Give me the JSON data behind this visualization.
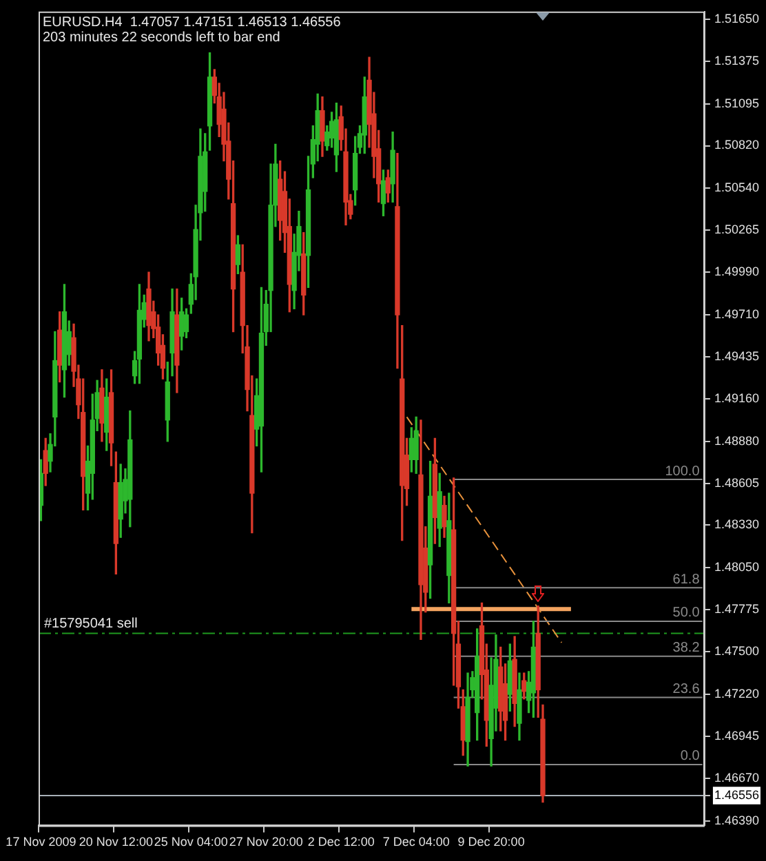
{
  "chart_data": {
    "type": "candlestick",
    "title": "EURUSD.H4  1.47057 1.47151 1.46513 1.46556",
    "subtitle": "203 minutes 22 seconds left to bar end",
    "categories": [
      "17 Nov 2009",
      null,
      null,
      null,
      null,
      null,
      null,
      null,
      null,
      null,
      null,
      null,
      null,
      null,
      null,
      null,
      "20 Nov 12:00",
      null,
      null,
      null,
      null,
      null,
      null,
      null,
      null,
      null,
      null,
      null,
      null,
      null,
      null,
      null,
      "25 Nov 04:00",
      null,
      null,
      null,
      null,
      null,
      null,
      null,
      null,
      null,
      null,
      null,
      null,
      null,
      null,
      null,
      "27 Nov 20:00",
      null,
      null,
      null,
      null,
      null,
      null,
      null,
      null,
      null,
      null,
      null,
      null,
      null,
      null,
      null,
      "2 Dec 12:00",
      null,
      null,
      null,
      null,
      null,
      null,
      null,
      null,
      null,
      null,
      null,
      null,
      null,
      null,
      null,
      "7 Dec 04:00",
      null,
      null,
      null,
      null,
      null,
      null,
      null,
      null,
      null,
      null,
      null,
      null,
      null,
      null,
      null,
      "9 Dec 20:00",
      null,
      null,
      null,
      null,
      null,
      null,
      null,
      null,
      null,
      null,
      null,
      null,
      null,
      null,
      null,
      null,
      null,
      null,
      null,
      null,
      null,
      null,
      null,
      null,
      null,
      null,
      null,
      null,
      null,
      null,
      null,
      null,
      null,
      null,
      null,
      null,
      null,
      null,
      null,
      null,
      null,
      null,
      null,
      null,
      null
    ],
    "ohlc": [
      [
        1.4846,
        1.4876,
        1.4836,
        1.4867
      ],
      [
        1.4882,
        1.489,
        1.4859,
        1.4867
      ],
      [
        1.4875,
        1.4893,
        1.4868,
        1.4886
      ],
      [
        1.4904,
        1.496,
        1.4885,
        1.4941
      ],
      [
        1.4961,
        1.4973,
        1.4927,
        1.4938
      ],
      [
        1.4935,
        1.4991,
        1.4917,
        1.4973
      ],
      [
        1.4945,
        1.4967,
        1.4938,
        1.496
      ],
      [
        1.4956,
        1.4965,
        1.4924,
        1.4934
      ],
      [
        1.4929,
        1.4938,
        1.4903,
        1.4912
      ],
      [
        1.4907,
        1.4929,
        1.4843,
        1.4865
      ],
      [
        1.4854,
        1.4885,
        1.4843,
        1.4875
      ],
      [
        1.4867,
        1.4919,
        1.485,
        1.4902
      ],
      [
        1.4903,
        1.4928,
        1.4895,
        1.492
      ],
      [
        1.4923,
        1.4935,
        1.4888,
        1.49
      ],
      [
        1.4894,
        1.4929,
        1.4882,
        1.4917
      ],
      [
        1.492,
        1.4935,
        1.4872,
        1.4887
      ],
      [
        1.4861,
        1.4881,
        1.4801,
        1.4821
      ],
      [
        1.4837,
        1.4873,
        1.4825,
        1.4861
      ],
      [
        1.4849,
        1.487,
        1.4841,
        1.4863
      ],
      [
        1.485,
        1.4908,
        1.4832,
        1.4889
      ],
      [
        1.4931,
        1.4947,
        1.4926,
        1.4941
      ],
      [
        1.4942,
        1.4991,
        1.4926,
        1.4974
      ],
      [
        1.4968,
        1.4984,
        1.4963,
        1.4979
      ],
      [
        1.4988,
        1.4999,
        1.4954,
        1.4964
      ],
      [
        1.4973,
        1.498,
        1.4956,
        1.4962
      ],
      [
        1.4963,
        1.4971,
        1.4938,
        1.4946
      ],
      [
        1.4951,
        1.4958,
        1.4929,
        1.4936
      ],
      [
        1.4902,
        1.494,
        1.4888,
        1.4927
      ],
      [
        1.4946,
        1.4988,
        1.4931,
        1.4973
      ],
      [
        1.4971,
        1.4988,
        1.492,
        1.4938
      ],
      [
        1.4957,
        1.4982,
        1.4948,
        1.4973
      ],
      [
        1.496,
        1.4975,
        1.4956,
        1.4971
      ],
      [
        1.4978,
        1.4998,
        1.4972,
        1.4991
      ],
      [
        1.4996,
        1.5043,
        1.4981,
        1.5027
      ],
      [
        1.5038,
        1.5093,
        1.502,
        1.5075
      ],
      [
        1.5052,
        1.509,
        1.5039,
        1.5078
      ],
      [
        1.5095,
        1.5143,
        1.5079,
        1.5127
      ],
      [
        1.5127,
        1.5132,
        1.511,
        1.5115
      ],
      [
        1.5114,
        1.5123,
        1.5088,
        1.5096
      ],
      [
        1.5106,
        1.5117,
        1.5072,
        1.5083
      ],
      [
        1.5085,
        1.5097,
        1.5047,
        1.506
      ],
      [
        1.5044,
        1.5072,
        1.496,
        1.4988
      ],
      [
        1.5004,
        1.5023,
        1.4998,
        1.5017
      ],
      [
        1.4999,
        1.5017,
        1.4946,
        1.4964
      ],
      [
        1.495,
        1.4964,
        1.4908,
        1.4922
      ],
      [
        1.4905,
        1.4931,
        1.4828,
        1.4854
      ],
      [
        1.4896,
        1.4929,
        1.4885,
        1.4918
      ],
      [
        1.4898,
        1.4989,
        1.4868,
        1.4959
      ],
      [
        1.496,
        1.4987,
        1.4951,
        1.4978
      ],
      [
        1.4987,
        1.507,
        1.496,
        1.5043
      ],
      [
        1.5043,
        1.5083,
        1.5029,
        1.507
      ],
      [
        1.506,
        1.5072,
        1.502,
        1.5033
      ],
      [
        1.5052,
        1.5065,
        1.5012,
        1.5025
      ],
      [
        1.5029,
        1.5047,
        1.4973,
        1.4991
      ],
      [
        1.4987,
        1.5024,
        1.4975,
        1.5012
      ],
      [
        1.501,
        1.5039,
        1.5,
        1.5029
      ],
      [
        1.5011,
        1.5025,
        1.4971,
        1.4984
      ],
      [
        1.501,
        1.5075,
        1.4989,
        1.5053
      ],
      [
        1.507,
        1.5095,
        1.5061,
        1.5086
      ],
      [
        1.5083,
        1.5116,
        1.5072,
        1.5105
      ],
      [
        1.5105,
        1.5114,
        1.5075,
        1.5085
      ],
      [
        1.5082,
        1.5095,
        1.5079,
        1.5091
      ],
      [
        1.5087,
        1.5104,
        1.5081,
        1.5098
      ],
      [
        1.5076,
        1.511,
        1.5065,
        1.5099
      ],
      [
        1.5101,
        1.5108,
        1.5079,
        1.5086
      ],
      [
        1.5078,
        1.5093,
        1.503,
        1.5045
      ],
      [
        1.5046,
        1.505,
        1.5034,
        1.5037
      ],
      [
        1.5053,
        1.5088,
        1.5043,
        1.5077
      ],
      [
        1.5081,
        1.5095,
        1.5077,
        1.509
      ],
      [
        1.5089,
        1.5127,
        1.5077,
        1.5114
      ],
      [
        1.5125,
        1.514,
        1.5081,
        1.5096
      ],
      [
        1.5103,
        1.5117,
        1.5061,
        1.5075
      ],
      [
        1.508,
        1.5092,
        1.5045,
        1.5057
      ],
      [
        1.5044,
        1.5066,
        1.5036,
        1.5059
      ],
      [
        1.5061,
        1.5066,
        1.5045,
        1.5051
      ],
      [
        1.5057,
        1.5091,
        1.5045,
        1.5079
      ],
      [
        1.5042,
        1.5077,
        1.4936,
        1.4971
      ],
      [
        1.4929,
        1.4964,
        1.4823,
        1.4859
      ],
      [
        1.4879,
        1.489,
        1.4846,
        1.4857
      ],
      [
        1.4876,
        1.4897,
        1.4868,
        1.489
      ],
      [
        1.4876,
        1.4904,
        1.4867,
        1.4895
      ],
      [
        1.4866,
        1.4902,
        1.4758,
        1.4794
      ],
      [
        1.4818,
        1.4832,
        1.4776,
        1.4789
      ],
      [
        1.4807,
        1.4875,
        1.4785,
        1.4852
      ],
      [
        1.4873,
        1.489,
        1.4821,
        1.4838
      ],
      [
        1.4831,
        1.4867,
        1.4819,
        1.4855
      ],
      [
        1.4846,
        1.4852,
        1.4825,
        1.4832
      ],
      [
        1.48,
        1.4854,
        1.4782,
        1.4836
      ],
      [
        1.483,
        1.4864,
        1.4728,
        1.4762
      ],
      [
        1.4755,
        1.477,
        1.4713,
        1.4727
      ],
      [
        1.4714,
        1.4725,
        1.4682,
        1.4692
      ],
      [
        1.4691,
        1.4736,
        1.4675,
        1.472
      ],
      [
        1.4725,
        1.4737,
        1.472,
        1.4733
      ],
      [
        1.471,
        1.4765,
        1.4692,
        1.4747
      ],
      [
        1.4767,
        1.4782,
        1.4719,
        1.4735
      ],
      [
        1.4738,
        1.4755,
        1.4688,
        1.4705
      ],
      [
        1.4693,
        1.4746,
        1.4675,
        1.4728
      ],
      [
        1.4713,
        1.4761,
        1.4698,
        1.4745
      ],
      [
        1.474,
        1.4753,
        1.4698,
        1.4711
      ],
      [
        1.4729,
        1.4742,
        1.4692,
        1.4705
      ],
      [
        1.4722,
        1.4755,
        1.4711,
        1.4744
      ],
      [
        1.4745,
        1.476,
        1.4701,
        1.4716
      ],
      [
        1.4703,
        1.4736,
        1.4692,
        1.4725
      ],
      [
        1.4731,
        1.4736,
        1.4719,
        1.4724
      ],
      [
        1.4718,
        1.4737,
        1.471,
        1.473
      ],
      [
        1.4723,
        1.477,
        1.4707,
        1.4753
      ],
      [
        1.4762,
        1.478,
        1.4707,
        1.4725
      ],
      [
        1.47057,
        1.47151,
        1.46513,
        1.46556
      ],
      null,
      null,
      null,
      null,
      null,
      null,
      null,
      null,
      null,
      null,
      null,
      null,
      null,
      null,
      null,
      null,
      null,
      null,
      null,
      null,
      null,
      null,
      null,
      null,
      null,
      null,
      null,
      null,
      null,
      null,
      null,
      null,
      null,
      null
    ],
    "colors": [
      "#2db82d",
      "#d9392a",
      "#2db82d",
      "#2db82d",
      "#d9392a",
      "#2db82d",
      "#2db82d",
      "#d9392a",
      "#d9392a",
      "#d9392a",
      "#2db82d",
      "#2db82d",
      "#2db82d",
      "#d9392a",
      "#2db82d",
      "#d9392a",
      "#d9392a",
      "#2db82d",
      "#2db82d",
      "#2db82d",
      "#2db82d",
      "#2db82d",
      "#2db82d",
      "#d9392a",
      "#d9392a",
      "#d9392a",
      "#d9392a",
      "#2db82d",
      "#2db82d",
      "#d9392a",
      "#2db82d",
      "#2db82d",
      "#2db82d",
      "#2db82d",
      "#2db82d",
      "#2db82d",
      "#2db82d",
      "#d9392a",
      "#d9392a",
      "#d9392a",
      "#d9392a",
      "#d9392a",
      "#2db82d",
      "#d9392a",
      "#d9392a",
      "#d9392a",
      "#2db82d",
      "#2db82d",
      "#2db82d",
      "#2db82d",
      "#2db82d",
      "#d9392a",
      "#d9392a",
      "#d9392a",
      "#2db82d",
      "#2db82d",
      "#d9392a",
      "#2db82d",
      "#2db82d",
      "#2db82d",
      "#d9392a",
      "#2db82d",
      "#2db82d",
      "#2db82d",
      "#d9392a",
      "#d9392a",
      "#d9392a",
      "#2db82d",
      "#2db82d",
      "#2db82d",
      "#d9392a",
      "#d9392a",
      "#d9392a",
      "#2db82d",
      "#d9392a",
      "#2db82d",
      "#d9392a",
      "#d9392a",
      "#d9392a",
      "#2db82d",
      "#2db82d",
      "#d9392a",
      "#d9392a",
      "#2db82d",
      "#d9392a",
      "#2db82d",
      "#d9392a",
      "#2db82d",
      "#d9392a",
      "#d9392a",
      "#d9392a",
      "#2db82d",
      "#2db82d",
      "#2db82d",
      "#d9392a",
      "#d9392a",
      "#2db82d",
      "#2db82d",
      "#d9392a",
      "#d9392a",
      "#2db82d",
      "#d9392a",
      "#2db82d",
      "#d9392a",
      "#2db82d",
      "#2db82d",
      "#d9392a",
      "#d9392a",
      null,
      null,
      null,
      null,
      null,
      null,
      null,
      null,
      null,
      null,
      null,
      null,
      null,
      null,
      null,
      null,
      null,
      null,
      null,
      null,
      null,
      null,
      null,
      null,
      null,
      null,
      null,
      null,
      null,
      null,
      null,
      null,
      null,
      null
    ],
    "series": [
      {
        "type": "line",
        "name": "100.0",
        "color": "#8a8a8a",
        "values": [
          null,
          null,
          null,
          null,
          null,
          null,
          null,
          null,
          null,
          null,
          null,
          null,
          null,
          null,
          null,
          null,
          null,
          null,
          null,
          null,
          null,
          null,
          null,
          null,
          null,
          null,
          null,
          null,
          null,
          null,
          null,
          null,
          null,
          null,
          null,
          null,
          null,
          null,
          null,
          null,
          null,
          null,
          null,
          null,
          null,
          null,
          null,
          null,
          null,
          null,
          null,
          null,
          null,
          null,
          null,
          null,
          null,
          null,
          null,
          null,
          null,
          null,
          null,
          null,
          null,
          null,
          null,
          null,
          null,
          null,
          null,
          null,
          null,
          null,
          null,
          null,
          null,
          null,
          null,
          null,
          null,
          null,
          null,
          null,
          null,
          null,
          null,
          null,
          1.4863,
          null,
          null,
          null,
          null,
          null,
          null,
          null,
          null,
          null,
          null,
          null,
          null,
          null,
          null,
          null,
          null,
          null,
          null,
          null,
          null,
          null,
          null,
          null,
          null,
          null,
          null,
          null,
          null,
          null,
          null,
          null,
          null,
          null,
          null,
          null,
          null,
          null,
          null,
          null,
          null,
          null,
          null,
          null,
          null,
          null,
          null,
          null,
          null,
          null,
          null,
          null,
          null,
          1.4863
        ]
      },
      {
        "type": "line",
        "name": "61.8",
        "color": "#8a8a8a",
        "values": [
          null,
          null,
          null,
          null,
          null,
          null,
          null,
          null,
          null,
          null,
          null,
          null,
          null,
          null,
          null,
          null,
          null,
          null,
          null,
          null,
          null,
          null,
          null,
          null,
          null,
          null,
          null,
          null,
          null,
          null,
          null,
          null,
          null,
          null,
          null,
          null,
          null,
          null,
          null,
          null,
          null,
          null,
          null,
          null,
          null,
          null,
          null,
          null,
          null,
          null,
          null,
          null,
          null,
          null,
          null,
          null,
          null,
          null,
          null,
          null,
          null,
          null,
          null,
          null,
          null,
          null,
          null,
          null,
          null,
          null,
          null,
          null,
          null,
          null,
          null,
          null,
          null,
          null,
          null,
          null,
          null,
          null,
          null,
          null,
          null,
          null,
          null,
          null,
          1.4792,
          null,
          null,
          null,
          null,
          null,
          null,
          null,
          null,
          null,
          null,
          null,
          null,
          null,
          null,
          null,
          null,
          null,
          null,
          null,
          null,
          null,
          null,
          null,
          null,
          null,
          null,
          null,
          null,
          null,
          null,
          null,
          null,
          null,
          null,
          null,
          null,
          null,
          null,
          null,
          null,
          null,
          null,
          null,
          null,
          null,
          null,
          null,
          null,
          null,
          null,
          null,
          null,
          1.4792
        ]
      },
      {
        "type": "line",
        "name": "50.0",
        "color": "#8a8a8a",
        "values": [
          null,
          null,
          null,
          null,
          null,
          null,
          null,
          null,
          null,
          null,
          null,
          null,
          null,
          null,
          null,
          null,
          null,
          null,
          null,
          null,
          null,
          null,
          null,
          null,
          null,
          null,
          null,
          null,
          null,
          null,
          null,
          null,
          null,
          null,
          null,
          null,
          null,
          null,
          null,
          null,
          null,
          null,
          null,
          null,
          null,
          null,
          null,
          null,
          null,
          null,
          null,
          null,
          null,
          null,
          null,
          null,
          null,
          null,
          null,
          null,
          null,
          null,
          null,
          null,
          null,
          null,
          null,
          null,
          null,
          null,
          null,
          null,
          null,
          null,
          null,
          null,
          null,
          null,
          null,
          null,
          null,
          null,
          null,
          null,
          null,
          null,
          null,
          null,
          1.477,
          null,
          null,
          null,
          null,
          null,
          null,
          null,
          null,
          null,
          null,
          null,
          null,
          null,
          null,
          null,
          null,
          null,
          null,
          null,
          null,
          null,
          null,
          null,
          null,
          null,
          null,
          null,
          null,
          null,
          null,
          null,
          null,
          null,
          null,
          null,
          null,
          null,
          null,
          null,
          null,
          null,
          null,
          null,
          null,
          null,
          null,
          null,
          null,
          null,
          null,
          null,
          null,
          1.477
        ]
      },
      {
        "type": "line",
        "name": "38.2",
        "color": "#8a8a8a",
        "values": [
          null,
          null,
          null,
          null,
          null,
          null,
          null,
          null,
          null,
          null,
          null,
          null,
          null,
          null,
          null,
          null,
          null,
          null,
          null,
          null,
          null,
          null,
          null,
          null,
          null,
          null,
          null,
          null,
          null,
          null,
          null,
          null,
          null,
          null,
          null,
          null,
          null,
          null,
          null,
          null,
          null,
          null,
          null,
          null,
          null,
          null,
          null,
          null,
          null,
          null,
          null,
          null,
          null,
          null,
          null,
          null,
          null,
          null,
          null,
          null,
          null,
          null,
          null,
          null,
          null,
          null,
          null,
          null,
          null,
          null,
          null,
          null,
          null,
          null,
          null,
          null,
          null,
          null,
          null,
          null,
          null,
          null,
          null,
          null,
          null,
          null,
          null,
          null,
          1.4747,
          null,
          null,
          null,
          null,
          null,
          null,
          null,
          null,
          null,
          null,
          null,
          null,
          null,
          null,
          null,
          null,
          null,
          null,
          null,
          null,
          null,
          null,
          null,
          null,
          null,
          null,
          null,
          null,
          null,
          null,
          null,
          null,
          null,
          null,
          null,
          null,
          null,
          null,
          null,
          null,
          null,
          null,
          null,
          null,
          null,
          null,
          null,
          null,
          null,
          null,
          null,
          null,
          1.4747
        ]
      },
      {
        "type": "line",
        "name": "23.6",
        "color": "#8a8a8a",
        "values": [
          null,
          null,
          null,
          null,
          null,
          null,
          null,
          null,
          null,
          null,
          null,
          null,
          null,
          null,
          null,
          null,
          null,
          null,
          null,
          null,
          null,
          null,
          null,
          null,
          null,
          null,
          null,
          null,
          null,
          null,
          null,
          null,
          null,
          null,
          null,
          null,
          null,
          null,
          null,
          null,
          null,
          null,
          null,
          null,
          null,
          null,
          null,
          null,
          null,
          null,
          null,
          null,
          null,
          null,
          null,
          null,
          null,
          null,
          null,
          null,
          null,
          null,
          null,
          null,
          null,
          null,
          null,
          null,
          null,
          null,
          null,
          null,
          null,
          null,
          null,
          null,
          null,
          null,
          null,
          null,
          null,
          null,
          null,
          null,
          null,
          null,
          null,
          null,
          1.472,
          null,
          null,
          null,
          null,
          null,
          null,
          null,
          null,
          null,
          null,
          null,
          null,
          null,
          null,
          null,
          null,
          null,
          null,
          null,
          null,
          null,
          null,
          null,
          null,
          null,
          null,
          null,
          null,
          null,
          null,
          null,
          null,
          null,
          null,
          null,
          null,
          null,
          null,
          null,
          null,
          null,
          null,
          null,
          null,
          null,
          null,
          null,
          null,
          null,
          null,
          null,
          null,
          1.472
        ]
      },
      {
        "type": "line",
        "name": "0.0",
        "color": "#8a8a8a",
        "values": [
          null,
          null,
          null,
          null,
          null,
          null,
          null,
          null,
          null,
          null,
          null,
          null,
          null,
          null,
          null,
          null,
          null,
          null,
          null,
          null,
          null,
          null,
          null,
          null,
          null,
          null,
          null,
          null,
          null,
          null,
          null,
          null,
          null,
          null,
          null,
          null,
          null,
          null,
          null,
          null,
          null,
          null,
          null,
          null,
          null,
          null,
          null,
          null,
          null,
          null,
          null,
          null,
          null,
          null,
          null,
          null,
          null,
          null,
          null,
          null,
          null,
          null,
          null,
          null,
          null,
          null,
          null,
          null,
          null,
          null,
          null,
          null,
          null,
          null,
          null,
          null,
          null,
          null,
          null,
          null,
          null,
          null,
          null,
          null,
          null,
          null,
          null,
          null,
          1.4676,
          null,
          null,
          null,
          null,
          null,
          null,
          null,
          null,
          null,
          null,
          null,
          null,
          null,
          null,
          null,
          null,
          null,
          null,
          null,
          null,
          null,
          null,
          null,
          null,
          null,
          null,
          null,
          null,
          null,
          null,
          null,
          null,
          null,
          null,
          null,
          null,
          null,
          null,
          null,
          null,
          null,
          null,
          null,
          null,
          null,
          null,
          null,
          null,
          null,
          null,
          null,
          null,
          1.4676
        ]
      },
      {
        "type": "line",
        "color": "#e8923c",
        "line_style": "dashed",
        "values": [
          null,
          null,
          null,
          null,
          null,
          null,
          null,
          null,
          null,
          null,
          null,
          null,
          null,
          null,
          null,
          null,
          null,
          null,
          null,
          null,
          null,
          null,
          null,
          null,
          null,
          null,
          null,
          null,
          null,
          null,
          null,
          null,
          null,
          null,
          null,
          null,
          null,
          null,
          null,
          null,
          null,
          null,
          null,
          null,
          null,
          null,
          null,
          null,
          null,
          null,
          null,
          null,
          null,
          null,
          null,
          null,
          null,
          null,
          null,
          null,
          null,
          null,
          null,
          null,
          null,
          null,
          null,
          null,
          null,
          null,
          null,
          null,
          null,
          null,
          null,
          null,
          null,
          null,
          1.4904,
          null,
          null,
          null,
          null,
          null,
          null,
          null,
          null,
          null,
          null,
          null,
          null,
          null,
          null,
          null,
          null,
          null,
          null,
          null,
          null,
          null,
          null,
          null,
          null,
          null,
          null,
          null,
          null,
          null,
          null,
          null,
          null,
          1.4756,
          null,
          null,
          null,
          null,
          null,
          null,
          null,
          null,
          null,
          null,
          null,
          null,
          null,
          null,
          null,
          null,
          null,
          null,
          null,
          null,
          null,
          null,
          null,
          null,
          null,
          null,
          null,
          null,
          null,
          null
        ]
      },
      {
        "type": "line",
        "color": "#f4a460",
        "values": [
          null,
          null,
          null,
          null,
          null,
          null,
          null,
          null,
          null,
          null,
          null,
          null,
          null,
          null,
          null,
          null,
          null,
          null,
          null,
          null,
          null,
          null,
          null,
          null,
          null,
          null,
          null,
          null,
          null,
          null,
          null,
          null,
          null,
          null,
          null,
          null,
          null,
          null,
          null,
          null,
          null,
          null,
          null,
          null,
          null,
          null,
          null,
          null,
          null,
          null,
          null,
          null,
          null,
          null,
          null,
          null,
          null,
          null,
          null,
          null,
          null,
          null,
          null,
          null,
          null,
          null,
          null,
          null,
          null,
          null,
          null,
          null,
          null,
          null,
          null,
          null,
          null,
          null,
          null,
          1.4778,
          null,
          null,
          null,
          null,
          null,
          null,
          null,
          null,
          null,
          null,
          null,
          null,
          null,
          null,
          null,
          null,
          null,
          null,
          null,
          null,
          null,
          null,
          null,
          null,
          null,
          null,
          null,
          null,
          null,
          null,
          null,
          null,
          null,
          1.4778,
          null,
          null,
          null,
          null,
          null,
          null,
          null,
          null,
          null,
          null,
          null,
          null,
          null,
          null,
          null,
          null,
          null,
          null,
          null,
          null,
          null,
          null,
          null,
          null,
          null,
          null,
          null,
          null
        ]
      }
    ],
    "ref_lines": [
      {
        "axis": "y",
        "value": 1.4762,
        "label": "#15795041 sell",
        "color": "#1f9a1f",
        "line_style": "dashed"
      },
      {
        "axis": "y",
        "value": 1.46556,
        "color": "#a8b0b8",
        "line_style": "solid"
      }
    ],
    "ylim": [
      1.4636,
      1.517
    ],
    "yticks": [
      {
        "value": 1.5165,
        "label": "1.51650"
      },
      1.51375,
      1.51095,
      {
        "value": 1.5082,
        "label": "1.50820"
      },
      {
        "value": 1.5054,
        "label": "1.50540"
      },
      1.50265,
      {
        "value": 1.4999,
        "label": "1.49990"
      },
      {
        "value": 1.4971,
        "label": "1.49710"
      },
      1.49435,
      {
        "value": 1.4916,
        "label": "1.49160"
      },
      {
        "value": 1.4888,
        "label": "1.48880"
      },
      1.48605,
      {
        "value": 1.4833,
        "label": "1.48330"
      },
      {
        "value": 1.4805,
        "label": "1.48050"
      },
      1.47775,
      {
        "value": 1.475,
        "label": "1.47500"
      },
      {
        "value": 1.4722,
        "label": "1.47220"
      },
      1.46945,
      {
        "value": 1.4667,
        "label": "1.46670"
      },
      1.46556,
      {
        "value": 1.4639,
        "label": "1.46390"
      }
    ]
  }
}
